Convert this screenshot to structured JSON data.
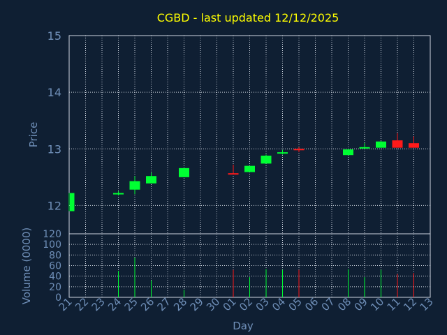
{
  "colors": {
    "background": "#0f1f33",
    "title": "#ffff00",
    "axis_text": "#6f8fb8",
    "grid": "#cfd6e0",
    "up": "#00ff33",
    "down": "#ff1a1a"
  },
  "chart_data": [
    {
      "type": "candlestick",
      "title": "CGBD - last updated 12/12/2025",
      "ylabel": "Price",
      "ylim": [
        11.5,
        15
      ],
      "yticks": [
        12,
        13,
        14,
        15
      ],
      "x_ticks": [
        "21",
        "22",
        "23",
        "24",
        "25",
        "26",
        "27",
        "28",
        "29",
        "30",
        "01",
        "02",
        "03",
        "04",
        "05",
        "06",
        "07",
        "08",
        "09",
        "10",
        "11",
        "12",
        "13"
      ],
      "candles": [
        {
          "day": "21",
          "open": 11.9,
          "high": 12.22,
          "low": 11.9,
          "close": 12.22
        },
        {
          "day": "24",
          "open": 12.21,
          "high": 12.25,
          "low": 12.18,
          "close": 12.22
        },
        {
          "day": "25",
          "open": 12.28,
          "high": 12.52,
          "low": 12.2,
          "close": 12.43
        },
        {
          "day": "26",
          "open": 12.39,
          "high": 12.58,
          "low": 12.39,
          "close": 12.52
        },
        {
          "day": "28",
          "open": 12.5,
          "high": 12.66,
          "low": 12.5,
          "close": 12.66
        },
        {
          "day": "01",
          "open": 12.57,
          "high": 12.72,
          "low": 12.55,
          "close": 12.55
        },
        {
          "day": "02",
          "open": 12.59,
          "high": 12.7,
          "low": 12.59,
          "close": 12.7
        },
        {
          "day": "03",
          "open": 12.74,
          "high": 12.9,
          "low": 12.74,
          "close": 12.88
        },
        {
          "day": "04",
          "open": 12.92,
          "high": 12.98,
          "low": 12.9,
          "close": 12.94
        },
        {
          "day": "05",
          "open": 13.0,
          "high": 13.03,
          "low": 12.94,
          "close": 12.98
        },
        {
          "day": "08",
          "open": 12.89,
          "high": 13.0,
          "low": 12.89,
          "close": 12.99
        },
        {
          "day": "09",
          "open": 13.01,
          "high": 13.1,
          "low": 13.0,
          "close": 13.03
        },
        {
          "day": "10",
          "open": 13.02,
          "high": 13.14,
          "low": 13.02,
          "close": 13.13
        },
        {
          "day": "11",
          "open": 13.15,
          "high": 13.28,
          "low": 13.02,
          "close": 13.02
        },
        {
          "day": "12",
          "open": 13.1,
          "high": 13.22,
          "low": 13.02,
          "close": 13.02
        }
      ]
    },
    {
      "type": "bar",
      "xlabel": "Day",
      "ylabel": "Volume (0000)",
      "ylim": [
        0,
        120
      ],
      "yticks": [
        0,
        20,
        40,
        60,
        80,
        100,
        120
      ],
      "categories": [
        "24",
        "25",
        "26",
        "28",
        "01",
        "02",
        "03",
        "04",
        "05",
        "08",
        "09",
        "10",
        "11",
        "12"
      ],
      "values": [
        50,
        75,
        32,
        14,
        52,
        38,
        53,
        52,
        52,
        53,
        38,
        52,
        44,
        46
      ],
      "direction": [
        "up",
        "up",
        "up",
        "up",
        "down",
        "up",
        "up",
        "up",
        "down",
        "up",
        "up",
        "up",
        "down",
        "down"
      ]
    }
  ]
}
